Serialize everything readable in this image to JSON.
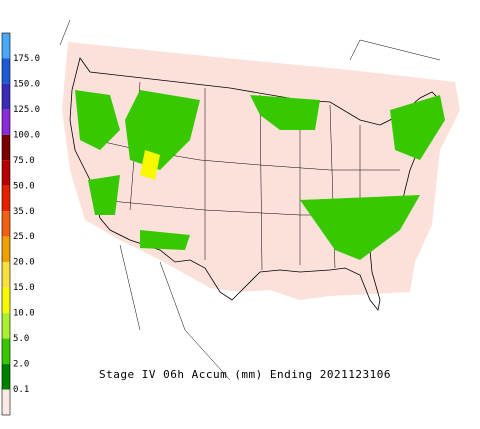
{
  "legend": {
    "labels": [
      "175.0",
      "150.0",
      "125.0",
      "100.0",
      "75.0",
      "50.0",
      "35.0",
      "25.0",
      "20.0",
      "15.0",
      "10.0",
      "5.0",
      "2.0",
      "0.1"
    ],
    "colors": [
      "#4aa8f8",
      "#1e5ad8",
      "#3a2ab8",
      "#8a2ad8",
      "#7a0000",
      "#b80000",
      "#e82000",
      "#f06010",
      "#f0a000",
      "#f8e040",
      "#f8f800",
      "#a8f030",
      "#38c800",
      "#008000",
      "#fce8e4"
    ]
  },
  "title": "Stage IV 06h Accum (mm) Ending 2021123106"
}
